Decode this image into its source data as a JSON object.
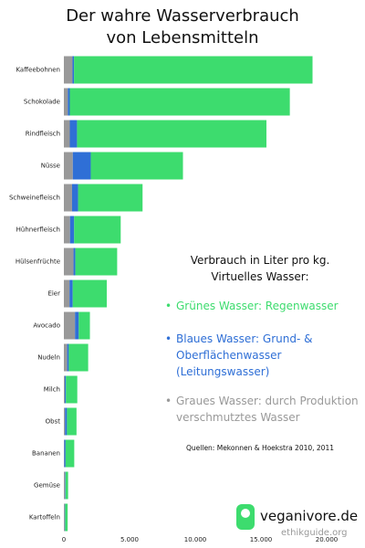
{
  "chart_data": {
    "type": "stacked_barh",
    "title": "Der wahre Wasserverbrauch von Lebensmitteln",
    "legend_title": [
      "Verbrauch in Liter pro kg.",
      "Virtuelles Wasser:"
    ],
    "categories": [
      "Kaffeebohnen",
      "Schokolade",
      "Rindfleisch",
      "Nüsse",
      "Schweinefleisch",
      "Hühnerfleisch",
      "Hülsenfrüchte",
      "Eier",
      "Avocado",
      "Nudeln",
      "Milch",
      "Obst",
      "Bananen",
      "Gemüse",
      "Kartoffeln"
    ],
    "series": [
      {
        "name": "Grünes Wasser: Regenwasser",
        "color": "#3ddc6e",
        "values": [
          18153,
          16745,
          14414,
          7016,
          4907,
          3545,
          3180,
          2592,
          849,
          1474,
          863,
          726,
          660,
          194,
          191
        ]
      },
      {
        "name": "Blaues Wasser: Grund- & Oberflächenwasser (Leitungswasser)",
        "color": "#2f6fd6",
        "values": [
          116,
          147,
          550,
          1367,
          459,
          313,
          141,
          244,
          283,
          124,
          86,
          147,
          97,
          43,
          33
        ]
      },
      {
        "name": "Graues Wasser: durch Produktion verschmutztes Wasser",
        "color": "#999999",
        "values": [
          655,
          304,
          451,
          680,
          622,
          467,
          734,
          429,
          849,
          251,
          72,
          89,
          33,
          85,
          63
        ]
      }
    ],
    "xlim": [
      0,
      20000
    ],
    "xticks": [
      0,
      {
        "value": 5000,
        "label": "5.000"
      },
      {
        "value": 10000,
        "label": "10.000"
      },
      {
        "value": 15000,
        "label": "15.000"
      },
      {
        "value": 20000,
        "label": "20.000"
      }
    ],
    "source": "Quellen: Mekonnen & Hoekstra 2010, 2011",
    "logo": "veganivore.de",
    "watermark": "ethikguide.org"
  }
}
